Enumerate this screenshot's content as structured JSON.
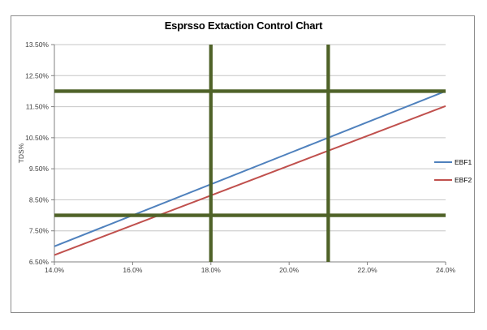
{
  "chart_data": {
    "type": "line",
    "title": "Esprsso Extaction Control Chart",
    "xlabel": "",
    "ylabel": "TDS%",
    "xlim": [
      14,
      24
    ],
    "ylim": [
      6.5,
      13.5
    ],
    "x": [
      14,
      16,
      18,
      20,
      22,
      24
    ],
    "x_tick_labels": [
      "14.0%",
      "16.0%",
      "18.0%",
      "20.0%",
      "22.0%",
      "24.0%"
    ],
    "y_ticks": [
      13.5,
      12.5,
      11.5,
      10.5,
      9.5,
      8.5,
      7.5,
      6.5
    ],
    "y_tick_labels": [
      "13.50%",
      "12.50%",
      "11.50%",
      "10.50%",
      "9.50%",
      "8.50%",
      "7.50%",
      "6.50%"
    ],
    "grid": true,
    "legend_position": "right",
    "series": [
      {
        "name": "EBF1",
        "color": "#4F81BD",
        "values": [
          7.0,
          8.0,
          9.0,
          10.0,
          11.0,
          12.0
        ]
      },
      {
        "name": "EBF2",
        "color": "#C0504D",
        "values": [
          6.72,
          7.68,
          8.64,
          9.6,
          10.56,
          11.52
        ]
      }
    ],
    "control_lines": {
      "color": "#4F6228",
      "horizontal_y": [
        12.0,
        8.0
      ],
      "vertical_x": [
        18.0,
        21.0
      ]
    },
    "axis_color": "#808080",
    "gridline_color": "#C6C6C6",
    "tick_label_color": "#3F3F3F"
  }
}
